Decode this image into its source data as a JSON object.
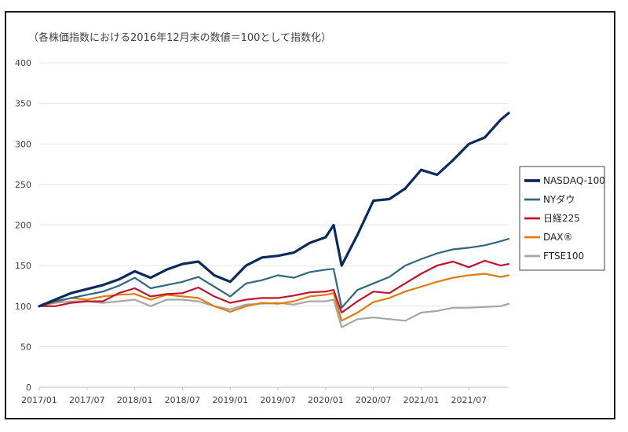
{
  "chart_data": {
    "type": "line",
    "note": "（各株価指数における2016年12月末の数値＝100として指数化）",
    "x_ticks": [
      "2017/01",
      "2017/07",
      "2018/01",
      "2018/07",
      "2019/01",
      "2019/07",
      "2020/01",
      "2020/07",
      "2021/01",
      "2021/07"
    ],
    "y_ticks": [
      "0",
      "50",
      "100",
      "150",
      "200",
      "250",
      "300",
      "350",
      "400"
    ],
    "ylim": [
      0,
      400
    ],
    "xlim": [
      "2017-01",
      "2021-12"
    ],
    "grid": true,
    "legend_position": "right",
    "x": [
      "2017-01",
      "2017-03",
      "2017-05",
      "2017-07",
      "2017-09",
      "2017-11",
      "2018-01",
      "2018-03",
      "2018-05",
      "2018-07",
      "2018-09",
      "2018-11",
      "2019-01",
      "2019-03",
      "2019-05",
      "2019-07",
      "2019-09",
      "2019-11",
      "2020-01",
      "2020-02",
      "2020-03",
      "2020-05",
      "2020-07",
      "2020-09",
      "2020-11",
      "2021-01",
      "2021-03",
      "2021-05",
      "2021-07",
      "2021-09",
      "2021-11",
      "2021-12"
    ],
    "series": [
      {
        "name": "NASDAQ-100",
        "color": "#0b2a5c",
        "width": 3.2,
        "values": [
          100,
          108,
          116,
          121,
          126,
          133,
          143,
          135,
          145,
          152,
          155,
          138,
          130,
          150,
          160,
          162,
          166,
          178,
          185,
          200,
          150,
          188,
          230,
          232,
          245,
          268,
          262,
          280,
          300,
          308,
          330,
          338
        ]
      },
      {
        "name": "NYダウ",
        "color": "#2e6683",
        "width": 2.2,
        "values": [
          100,
          106,
          110,
          114,
          118,
          125,
          135,
          122,
          126,
          130,
          136,
          124,
          112,
          128,
          132,
          138,
          135,
          142,
          145,
          146,
          98,
          120,
          128,
          136,
          150,
          158,
          165,
          170,
          172,
          175,
          180,
          183
        ]
      },
      {
        "name": "日経225",
        "color": "#c0142c",
        "width": 2.2,
        "values": [
          100,
          100,
          104,
          106,
          106,
          116,
          122,
          112,
          115,
          116,
          123,
          112,
          104,
          108,
          110,
          110,
          113,
          117,
          118,
          120,
          92,
          106,
          118,
          116,
          128,
          140,
          150,
          155,
          148,
          156,
          150,
          152
        ]
      },
      {
        "name": "DAX®",
        "color": "#e07b0b",
        "width": 2.2,
        "values": [
          100,
          105,
          110,
          108,
          112,
          114,
          115,
          108,
          114,
          112,
          110,
          100,
          93,
          100,
          104,
          103,
          106,
          112,
          114,
          116,
          82,
          92,
          105,
          110,
          118,
          124,
          130,
          135,
          138,
          140,
          136,
          138
        ]
      },
      {
        "name": "FTSE100",
        "color": "#a6a6a6",
        "width": 2.2,
        "values": [
          100,
          104,
          106,
          106,
          104,
          106,
          108,
          100,
          108,
          108,
          106,
          100,
          96,
          102,
          103,
          104,
          102,
          106,
          106,
          108,
          74,
          84,
          86,
          84,
          82,
          92,
          94,
          98,
          98,
          99,
          100,
          103
        ]
      }
    ]
  }
}
